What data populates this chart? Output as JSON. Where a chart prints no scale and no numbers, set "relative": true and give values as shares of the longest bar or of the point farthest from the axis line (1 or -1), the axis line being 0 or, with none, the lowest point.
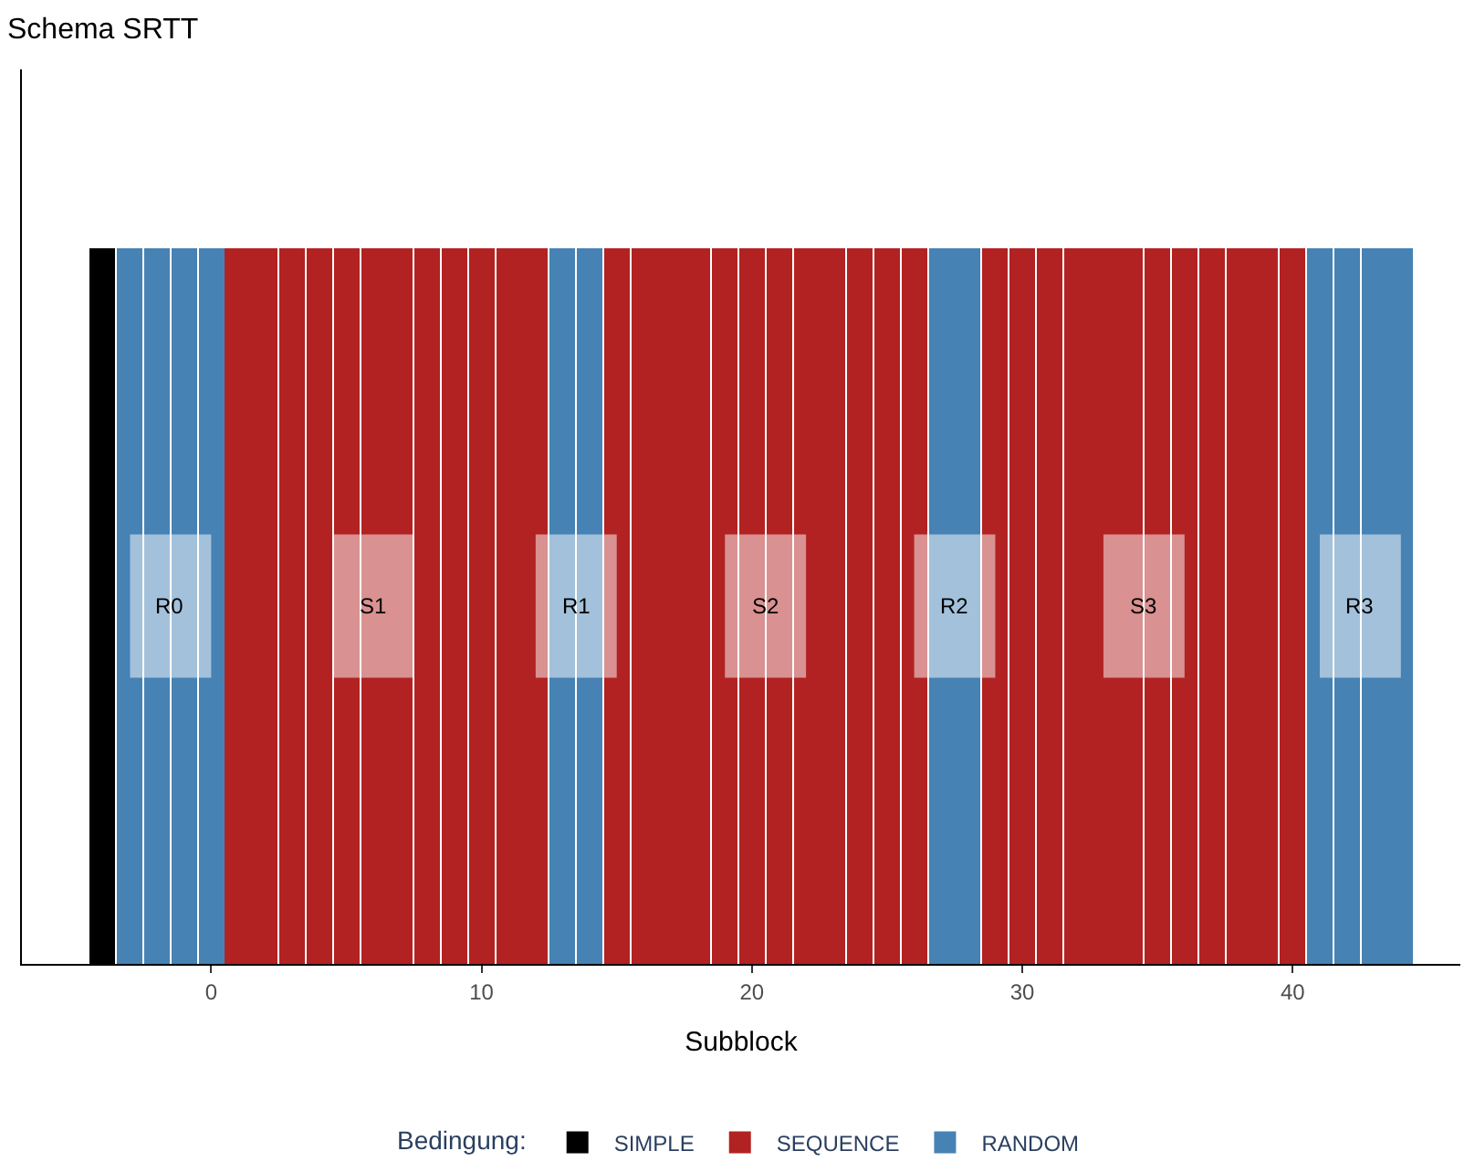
{
  "chart_data": {
    "type": "bar",
    "title": "Schema SRTT",
    "xlabel": "Subblock",
    "legend_title": "Bedingung:",
    "relative": true,
    "series": [
      {
        "name": "SIMPLE",
        "color": "#000000",
        "x": [
          -4
        ],
        "values": [
          1
        ]
      },
      {
        "name": "SEQUENCE",
        "color": "#b22222",
        "x": [
          1,
          2,
          3,
          4,
          5,
          6,
          7,
          8,
          9,
          10,
          11,
          12,
          15,
          16,
          17,
          18,
          19,
          20,
          21,
          22,
          23,
          24,
          25,
          26,
          29,
          30,
          31,
          32,
          33,
          34,
          35,
          36,
          37,
          38,
          39,
          40
        ],
        "values": [
          1,
          1,
          1,
          1,
          1,
          1,
          1,
          1,
          1,
          1,
          1,
          1,
          1,
          1,
          1,
          1,
          1,
          1,
          1,
          1,
          1,
          1,
          1,
          1,
          1,
          1,
          1,
          1,
          1,
          1,
          1,
          1,
          1,
          1,
          1,
          1
        ]
      },
      {
        "name": "RANDOM",
        "color": "#4682b4",
        "x": [
          -3,
          -2,
          -1,
          0,
          13,
          14,
          27,
          28,
          41,
          42,
          43,
          44
        ],
        "values": [
          1,
          1,
          1,
          1,
          1,
          1,
          1,
          1,
          1,
          1,
          1,
          1
        ]
      }
    ],
    "xlim": [
      -7,
      46.2
    ],
    "xticks": [
      0,
      10,
      20,
      30,
      40
    ],
    "legend": "bottom",
    "bands": [
      {
        "axis": "x",
        "from": -3,
        "to": 0,
        "label": "R0",
        "color": "#ffffff"
      },
      {
        "axis": "x",
        "from": 4.5,
        "to": 7.5,
        "label": "S1",
        "color": "#ffffff"
      },
      {
        "axis": "x",
        "from": 12,
        "to": 15,
        "label": "R1",
        "color": "#ffffff"
      },
      {
        "axis": "x",
        "from": 19,
        "to": 22,
        "label": "S2",
        "color": "#ffffff"
      },
      {
        "axis": "x",
        "from": 26,
        "to": 29,
        "label": "R2",
        "color": "#ffffff"
      },
      {
        "axis": "x",
        "from": 33,
        "to": 36,
        "label": "S3",
        "color": "#ffffff"
      },
      {
        "axis": "x",
        "from": 41,
        "to": 44,
        "label": "R3",
        "color": "#ffffff"
      }
    ]
  }
}
